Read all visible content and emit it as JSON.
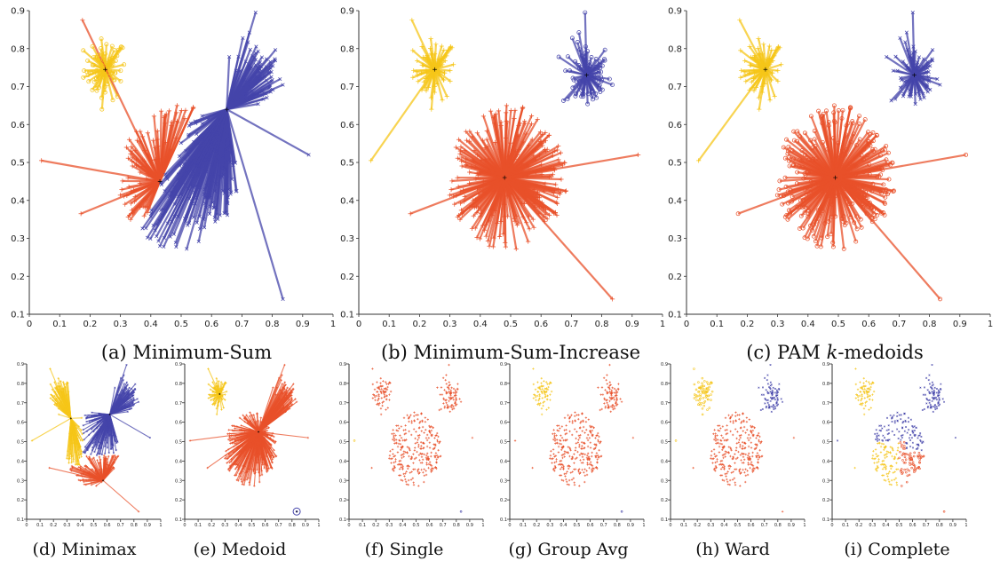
{
  "colors": {
    "yellow": "#f5c518",
    "orange": "#e8502a",
    "blue": "#4444aa",
    "axis": "#333333",
    "black": "#000000"
  },
  "ticks_x_large": [
    "0",
    "0.1",
    "0.2",
    "0.3",
    "0.4",
    "0.5",
    "0.6",
    "0.7",
    "0.8",
    "0.9",
    "1"
  ],
  "ticks_y_large": [
    "0.1",
    "0.2",
    "0.3",
    "0.4",
    "0.5",
    "0.6",
    "0.7",
    "0.8",
    "0.9"
  ],
  "captions": {
    "a": "(a) Minimum-Sum",
    "b": "(b) Minimum-Sum-Increase",
    "c_pre": "(c) PAM ",
    "c_k": "k",
    "c_post": "-medoids",
    "d": "(d) Minimax",
    "e": "(e) Medoid",
    "f": "(f) Single",
    "g": "(g) Group Avg",
    "h": "(h) Ward",
    "i": "(i) Complete"
  },
  "chart_data": [
    {
      "id": "a",
      "type": "scatter",
      "title": "(a) Minimum-Sum",
      "xlim": [
        0,
        1
      ],
      "ylim": [
        0.1,
        0.9
      ],
      "grid": false,
      "star": true,
      "points": "mickey",
      "clusters": [
        {
          "color": "yellow",
          "marker": "circle",
          "center": [
            0.25,
            0.74
          ]
        },
        {
          "color": "orange",
          "marker": "plus",
          "center": [
            0.43,
            0.45
          ]
        },
        {
          "color": "blue",
          "marker": "x",
          "center": [
            0.65,
            0.64
          ]
        }
      ]
    },
    {
      "id": "b",
      "type": "scatter",
      "title": "(b) Minimum-Sum-Increase",
      "xlim": [
        0,
        1
      ],
      "ylim": [
        0.1,
        0.9
      ],
      "grid": false,
      "star": true,
      "clusters": [
        {
          "color": "yellow",
          "marker": "plus",
          "center": [
            0.25,
            0.74
          ]
        },
        {
          "color": "orange",
          "marker": "plus",
          "center": [
            0.48,
            0.46
          ]
        },
        {
          "color": "blue",
          "marker": "circle",
          "center": [
            0.75,
            0.73
          ]
        }
      ]
    },
    {
      "id": "c",
      "type": "scatter",
      "title": "(c) PAM k-medoids",
      "xlim": [
        0,
        1
      ],
      "ylim": [
        0.1,
        0.9
      ],
      "grid": false,
      "star": true,
      "clusters": [
        {
          "color": "yellow",
          "marker": "plus",
          "center": [
            0.26,
            0.745
          ]
        },
        {
          "color": "orange",
          "marker": "circle",
          "center": [
            0.49,
            0.46
          ]
        },
        {
          "color": "blue",
          "marker": "x",
          "center": [
            0.75,
            0.73
          ]
        }
      ]
    },
    {
      "id": "d",
      "type": "scatter",
      "title": "(d) Minimax",
      "xlim": [
        0,
        1
      ],
      "ylim": [
        0.1,
        0.9
      ],
      "star": true
    },
    {
      "id": "e",
      "type": "scatter",
      "title": "(e) Medoid",
      "xlim": [
        0,
        1
      ],
      "ylim": [
        0.1,
        0.9
      ],
      "star": true
    },
    {
      "id": "f",
      "type": "scatter",
      "title": "(f) Single",
      "xlim": [
        0,
        1
      ],
      "ylim": [
        0.1,
        0.9
      ],
      "star": false
    },
    {
      "id": "g",
      "type": "scatter",
      "title": "(g) Group Avg",
      "xlim": [
        0,
        1
      ],
      "ylim": [
        0.1,
        0.9
      ],
      "star": false
    },
    {
      "id": "h",
      "type": "scatter",
      "title": "(h) Ward",
      "xlim": [
        0,
        1
      ],
      "ylim": [
        0.1,
        0.9
      ],
      "star": false
    },
    {
      "id": "i",
      "type": "scatter",
      "title": "(i) Complete",
      "xlim": [
        0,
        1
      ],
      "ylim": [
        0.1,
        0.9
      ],
      "star": false
    }
  ]
}
